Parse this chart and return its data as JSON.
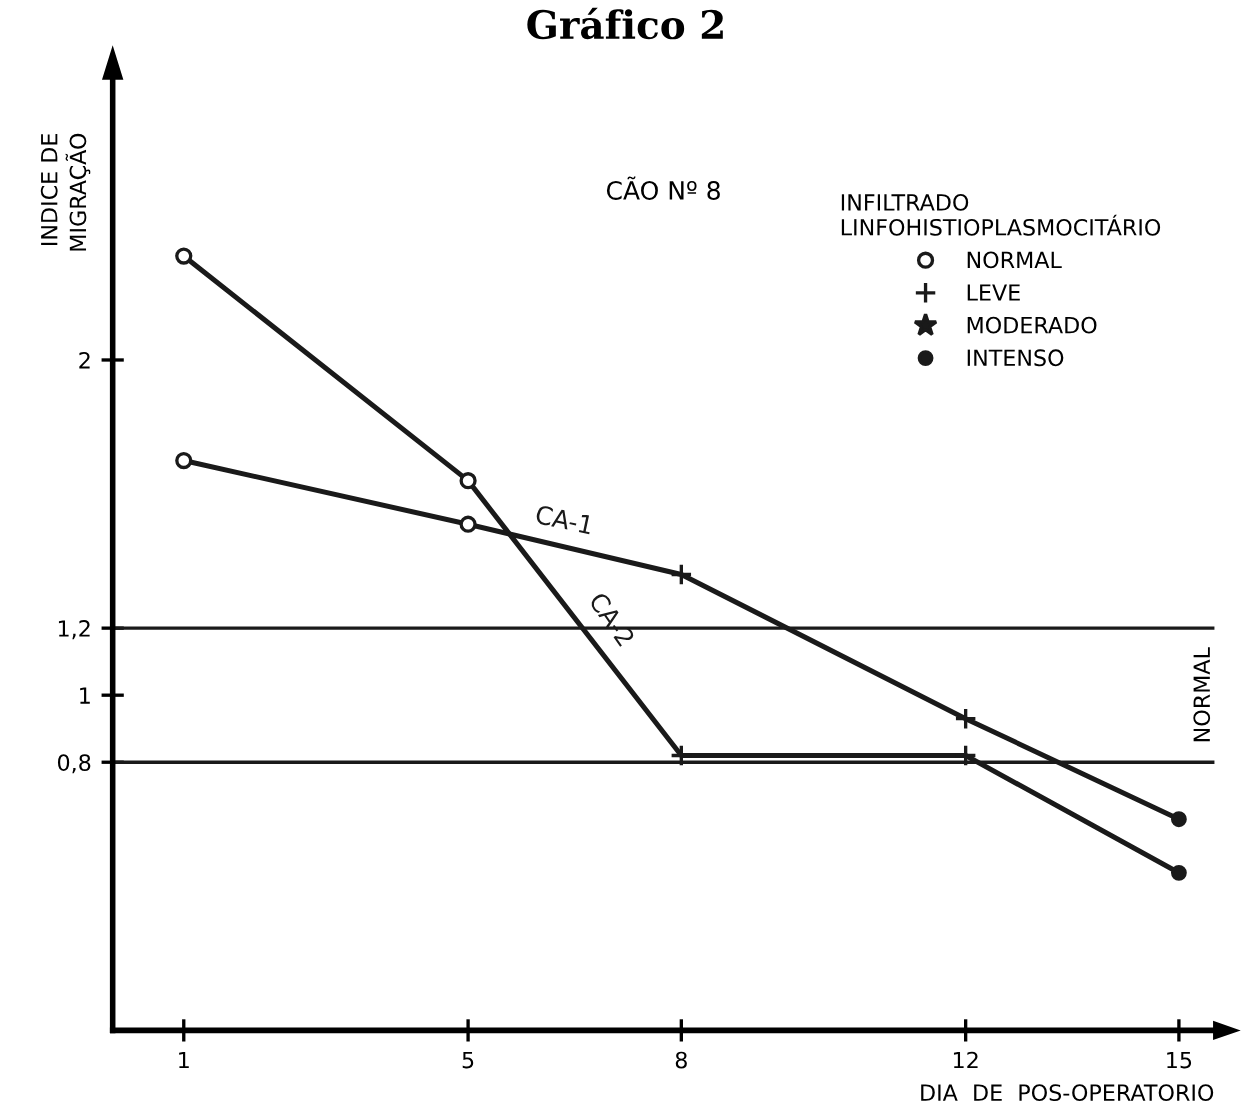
{
  "chart_data": {
    "type": "line",
    "title": "Gráfico 2",
    "subtitle": "CÃO Nº 8",
    "ylabel": "INDICE DE\nMIGRAÇÃO",
    "xlabel": "DIA  DE  POS-OPERATORIO",
    "legend_title": "INFILTRADO\nLINFOHISTIOPLASMOCITÁRIO",
    "x": [
      1,
      5,
      8,
      12,
      15
    ],
    "series": [
      {
        "name": "CA-1",
        "color": "#1a1a1a",
        "values": [
          1.7,
          1.51,
          1.36,
          0.93,
          0.63
        ],
        "marker": "none"
      },
      {
        "name": "CA-2",
        "color": "#1a1a1a",
        "values": [
          2.31,
          1.64,
          0.82,
          0.82,
          0.47
        ],
        "marker": "none"
      },
      {
        "name": "NORMAL",
        "type": "scatter",
        "color": "#1a1a1a",
        "marker": "circle",
        "x": [
          1,
          5,
          1,
          5
        ],
        "values": [
          1.7,
          1.51,
          2.31,
          1.64
        ]
      },
      {
        "name": "LEVE",
        "type": "scatter",
        "color": "#1a1a1a",
        "marker": "cross",
        "x": [
          8,
          12,
          8,
          12
        ],
        "values": [
          1.36,
          0.93,
          0.82,
          0.82
        ]
      },
      {
        "name": "MODERADO",
        "type": "scatter",
        "color": "#1a1a1a",
        "marker": "star",
        "values": [
          null,
          null,
          null,
          null,
          null
        ]
      },
      {
        "name": "INTENSO",
        "type": "scatter",
        "color": "#1a1a1a",
        "marker": "dot",
        "x": [
          15,
          15
        ],
        "values": [
          0.63,
          0.47
        ]
      }
    ],
    "xlim": [
      0,
      15.5
    ],
    "ylim": [
      0,
      2.84
    ],
    "xticks": [
      1,
      5,
      8,
      12,
      15
    ],
    "yticks": [
      {
        "value": 0.8,
        "label": "0,8"
      },
      1,
      {
        "value": 1.2,
        "label": "1,2"
      },
      2
    ],
    "ref_lines": [
      {
        "axis": "y",
        "value": 0.8,
        "color": "#1a1a1a"
      },
      {
        "axis": "y",
        "value": 1.2,
        "color": "#1a1a1a"
      }
    ],
    "annotations": [
      "NORMAL"
    ],
    "legend": "top right",
    "grid": false
  }
}
